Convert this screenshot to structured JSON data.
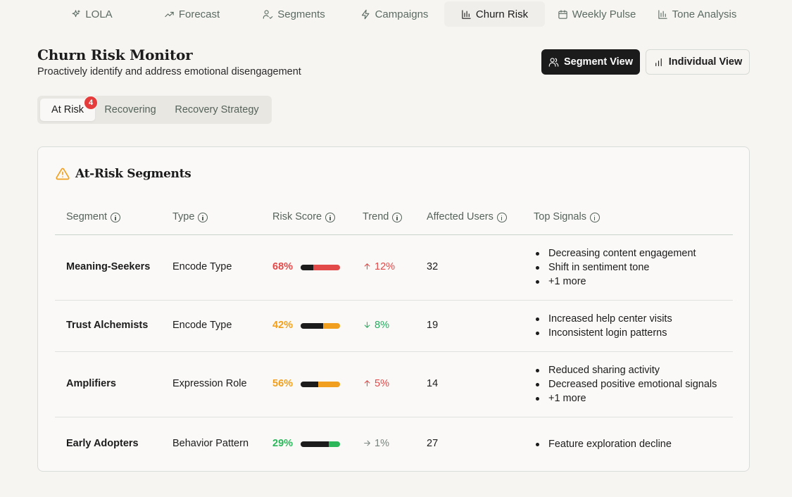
{
  "nav": [
    {
      "label": "LOLA",
      "icon": "sparkles-icon"
    },
    {
      "label": "Forecast",
      "icon": "trending-up-icon"
    },
    {
      "label": "Segments",
      "icon": "user-check-icon"
    },
    {
      "label": "Campaigns",
      "icon": "lightning-icon"
    },
    {
      "label": "Churn Risk",
      "icon": "bar-chart-icon",
      "active": true
    },
    {
      "label": "Weekly Pulse",
      "icon": "calendar-icon"
    },
    {
      "label": "Tone Analysis",
      "icon": "bar-chart-icon"
    }
  ],
  "header": {
    "title": "Churn Risk Monitor",
    "subtitle": "Proactively identify and address emotional disengagement",
    "segment_view_label": "Segment View",
    "individual_view_label": "Individual View"
  },
  "tabs": [
    {
      "label": "At Risk",
      "active": true,
      "badge": "4"
    },
    {
      "label": "Recovering"
    },
    {
      "label": "Recovery Strategy"
    }
  ],
  "card": {
    "title": "At-Risk Segments",
    "headers": [
      "Segment",
      "Type",
      "Risk Score",
      "Trend",
      "Affected Users",
      "Top Signals"
    ]
  },
  "rows": [
    {
      "segment": "Meaning-Seekers",
      "type": "Encode Type",
      "score_label": "68%",
      "score": 68,
      "score_color": "#e24a4a",
      "trend_dir": "up",
      "trend_label": "12%",
      "trend_color": "#e24a4a",
      "users": "32",
      "signals": [
        "Decreasing content engagement",
        "Shift in sentiment tone",
        "+1 more"
      ]
    },
    {
      "segment": "Trust Alchemists",
      "type": "Encode Type",
      "score_label": "42%",
      "score": 42,
      "score_color": "#f0a01e",
      "trend_dir": "down",
      "trend_label": "8%",
      "trend_color": "#27ae60",
      "users": "19",
      "signals": [
        "Increased help center visits",
        "Inconsistent login patterns"
      ]
    },
    {
      "segment": "Amplifiers",
      "type": "Expression Role",
      "score_label": "56%",
      "score": 56,
      "score_color": "#f0a01e",
      "trend_dir": "up",
      "trend_label": "5%",
      "trend_color": "#e24a4a",
      "users": "14",
      "signals": [
        "Reduced sharing activity",
        "Decreased positive emotional signals",
        "+1 more"
      ]
    },
    {
      "segment": "Early Adopters",
      "type": "Behavior Pattern",
      "score_label": "29%",
      "score": 29,
      "score_color": "#2bb75a",
      "trend_dir": "flat",
      "trend_label": "1%",
      "trend_color": "#7a847f",
      "users": "27",
      "signals": [
        "Feature exploration decline"
      ]
    }
  ]
}
